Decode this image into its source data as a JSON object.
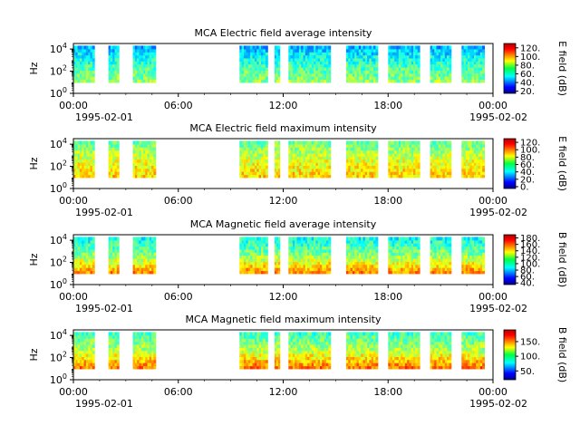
{
  "chart_data": [
    {
      "type": "heatmap",
      "title": "MCA  Electric field average intensity",
      "ylabel": "Hz",
      "y_scale": "log",
      "y_ticks": [
        {
          "base": "10",
          "exp": "0"
        },
        {
          "base": "10",
          "exp": "2"
        },
        {
          "base": "10",
          "exp": "4"
        }
      ],
      "x_ticks": [
        "00:00",
        "06:00",
        "12:00",
        "18:00",
        "00:00"
      ],
      "x_start_date": "1995-02-01",
      "x_end_date": "1995-02-02",
      "colorbar_label": "E field (dB)",
      "colorbar_ticks": [
        "120.",
        "100.",
        "80.",
        "60.",
        "40.",
        "20."
      ],
      "colorbar_range": [
        15,
        130
      ],
      "data_segments_hours": [
        [
          0.0,
          1.2
        ],
        [
          2.0,
          2.6
        ],
        [
          3.4,
          4.7
        ],
        [
          9.5,
          11.1
        ],
        [
          11.5,
          11.8
        ],
        [
          12.3,
          14.7
        ],
        [
          15.6,
          17.4
        ],
        [
          18.0,
          19.8
        ],
        [
          20.4,
          21.6
        ],
        [
          22.2,
          23.5
        ]
      ],
      "freq_range_hz": [
        10,
        20000
      ],
      "typical_levels_db": {
        "low_freq": 75,
        "mid_freq": 65,
        "high_freq": 50
      }
    },
    {
      "type": "heatmap",
      "title": "MCA  Electric field maximum intensity",
      "ylabel": "Hz",
      "y_scale": "log",
      "y_ticks": [
        {
          "base": "10",
          "exp": "0"
        },
        {
          "base": "10",
          "exp": "2"
        },
        {
          "base": "10",
          "exp": "4"
        }
      ],
      "x_ticks": [
        "00:00",
        "06:00",
        "12:00",
        "18:00",
        "00:00"
      ],
      "x_start_date": "1995-02-01",
      "x_end_date": "1995-02-02",
      "colorbar_label": "E field (dB)",
      "colorbar_ticks": [
        "120.",
        "100.",
        "80.",
        "60.",
        "40.",
        "20.",
        "0."
      ],
      "colorbar_range": [
        -5,
        130
      ],
      "data_segments_hours": [
        [
          0.0,
          1.2
        ],
        [
          2.0,
          2.6
        ],
        [
          3.4,
          4.7
        ],
        [
          9.5,
          11.1
        ],
        [
          11.5,
          11.8
        ],
        [
          12.3,
          14.7
        ],
        [
          15.6,
          17.4
        ],
        [
          18.0,
          19.8
        ],
        [
          20.4,
          21.6
        ],
        [
          22.2,
          23.5
        ]
      ],
      "freq_range_hz": [
        10,
        20000
      ],
      "typical_levels_db": {
        "low_freq": 85,
        "mid_freq": 75,
        "high_freq": 60
      }
    },
    {
      "type": "heatmap",
      "title": "MCA  Magnetic field average intensity",
      "ylabel": "Hz",
      "y_scale": "log",
      "y_ticks": [
        {
          "base": "10",
          "exp": "0"
        },
        {
          "base": "10",
          "exp": "2"
        },
        {
          "base": "10",
          "exp": "4"
        }
      ],
      "x_ticks": [
        "00:00",
        "06:00",
        "12:00",
        "18:00",
        "00:00"
      ],
      "x_start_date": "1995-02-01",
      "x_end_date": "1995-02-02",
      "colorbar_label": "B field (dB)",
      "colorbar_ticks": [
        "180.",
        "160.",
        "140.",
        "120.",
        "100.",
        "80.",
        "60.",
        "40."
      ],
      "colorbar_range": [
        35,
        190
      ],
      "data_segments_hours": [
        [
          0.0,
          1.2
        ],
        [
          2.0,
          2.6
        ],
        [
          3.4,
          4.7
        ],
        [
          9.5,
          11.1
        ],
        [
          11.5,
          11.8
        ],
        [
          12.3,
          14.7
        ],
        [
          15.6,
          17.4
        ],
        [
          18.0,
          19.8
        ],
        [
          20.4,
          21.6
        ],
        [
          22.2,
          23.5
        ]
      ],
      "freq_range_hz": [
        10,
        20000
      ],
      "typical_levels_db": {
        "low_freq": 150,
        "mid_freq": 115,
        "high_freq": 95
      }
    },
    {
      "type": "heatmap",
      "title": "MCA  Magnetic field maximum intensity",
      "ylabel": "Hz",
      "y_scale": "log",
      "y_ticks": [
        {
          "base": "10",
          "exp": "0"
        },
        {
          "base": "10",
          "exp": "2"
        },
        {
          "base": "10",
          "exp": "4"
        }
      ],
      "x_ticks": [
        "00:00",
        "06:00",
        "12:00",
        "18:00",
        "00:00"
      ],
      "x_start_date": "1995-02-01",
      "x_end_date": "1995-02-02",
      "colorbar_label": "B field (dB)",
      "colorbar_ticks": [
        "150.",
        "100.",
        "50."
      ],
      "colorbar_range": [
        20,
        190
      ],
      "data_segments_hours": [
        [
          0.0,
          1.2
        ],
        [
          2.0,
          2.6
        ],
        [
          3.4,
          4.7
        ],
        [
          9.5,
          11.1
        ],
        [
          11.5,
          11.8
        ],
        [
          12.3,
          14.7
        ],
        [
          15.6,
          17.4
        ],
        [
          18.0,
          19.8
        ],
        [
          20.4,
          21.6
        ],
        [
          22.2,
          23.5
        ]
      ],
      "freq_range_hz": [
        10,
        20000
      ],
      "typical_levels_db": {
        "low_freq": 150,
        "mid_freq": 115,
        "high_freq": 95
      }
    }
  ]
}
